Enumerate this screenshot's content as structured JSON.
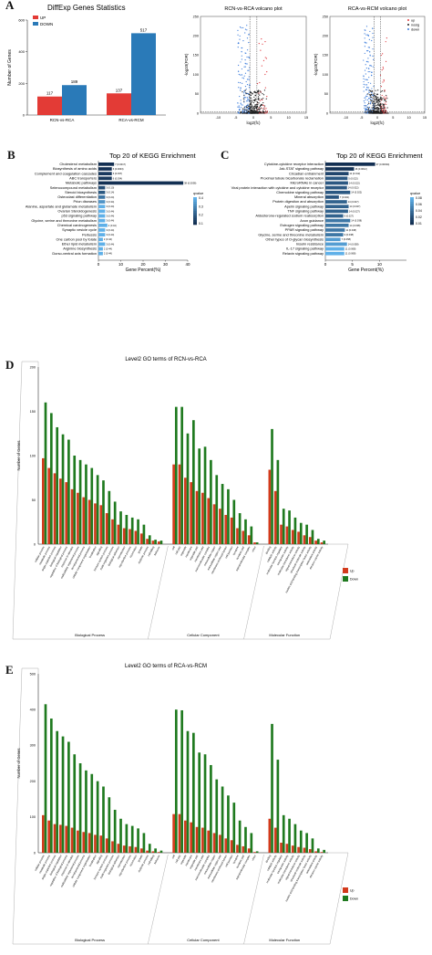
{
  "panel_letters": {
    "a": "A",
    "b": "B",
    "c": "C",
    "d": "D",
    "e": "E"
  },
  "colors": {
    "up": "#e33b36",
    "down": "#2a7ab8",
    "go_up": "#d33a1c",
    "go_down": "#1f7a1f",
    "kegg_dark": "#132f52",
    "kegg_light": "#5fb0e8",
    "volcano_up": "#e0393e",
    "volcano_down": "#3d7ddc",
    "volcano_nosig": "#222222"
  },
  "chart_data": [
    {
      "type": "bar",
      "title": "DiffExp Genes Statistics",
      "ylabel": "Number of Genes",
      "ylim": [
        0,
        600
      ],
      "yticks": [
        0,
        200,
        400,
        600
      ],
      "categories": [
        "RCN-vs-RCA",
        "RCA-vs-RCM"
      ],
      "series": [
        {
          "name": "UP",
          "values": [
            117,
            137
          ]
        },
        {
          "name": "DOWN",
          "values": [
            189,
            517
          ]
        }
      ],
      "legend": "top-left"
    },
    {
      "type": "scatter",
      "title": "RCN-vs-RCA volcano plot",
      "xlabel": "log2(fc)",
      "ylabel": "-log10(FDR)",
      "xlim": [
        -15,
        15
      ],
      "ylim": [
        0,
        250
      ],
      "xticks": [
        -10,
        -5,
        0,
        5,
        10,
        15
      ],
      "yticks": [
        0,
        50,
        100,
        150,
        200,
        250
      ]
    },
    {
      "type": "scatter",
      "title": "RCA-vs-RCM volcano plot",
      "xlabel": "log2(fc)",
      "ylabel": "-log10(FDR)",
      "xlim": [
        -15,
        15
      ],
      "ylim": [
        0,
        250
      ],
      "xticks": [
        -10,
        -5,
        0,
        5,
        10,
        15
      ],
      "yticks": [
        0,
        50,
        100,
        150,
        200,
        250
      ],
      "legend_entries": [
        "up",
        "nosig",
        "down"
      ]
    },
    {
      "type": "bar",
      "orientation": "horizontal",
      "title": "Top 20 of KEGG Enrichment",
      "xlabel": "Gene Percent(%)",
      "xlim": [
        0,
        40
      ],
      "xticks": [
        0,
        10,
        20,
        30,
        40
      ],
      "colorbar": {
        "title": "qvalue",
        "ticks": [
          "0.4",
          "0.3",
          "0.2",
          "0.1"
        ]
      },
      "categories": [
        "Cholesterol metabolism",
        "Biosynthesis of amino acids",
        "Complement and coagulation cascades",
        "ABC transporters",
        "Metabolic pathways",
        "Selenocompound metabolism",
        "Steroid biosynthesis",
        "Osteoclast differentiation",
        "Prion diseases",
        "Alanine, aspartate and glutamate metabolism",
        "Ovarian Steroidogenesis",
        "p53 signaling pathway",
        "Glycine, serine and threonine metabolism",
        "Chemical carcinogenesis",
        "Synaptic vesicle cycle",
        "Pertussis",
        "One carbon pool by folate",
        "Ether lipid metabolism",
        "Arginine biosynthesis",
        "Dorso-ventral axis formation"
      ],
      "values": [
        7,
        6,
        6,
        6,
        38,
        3,
        3,
        3,
        3,
        3,
        3,
        3,
        3,
        4,
        3,
        3,
        2,
        3,
        2,
        2
      ],
      "labels": [
        "7 (0.0017)",
        "6 (0.0033)",
        "6 (0.037)",
        "6 (0.034)",
        "38 (0.0038)",
        "3 (0.10)",
        "3 (0.14)",
        "3 (0.24)",
        "3 (0.34)",
        "3 (0.44)",
        "3 (0.44)",
        "3 (0.44)",
        "3 (0.44)",
        "4 (0.44)",
        "3 (0.44)",
        "3 (0.44)",
        "2 (0.44)",
        "3 (0.44)",
        "2 (0.44)",
        "2 (0.44)"
      ],
      "qvalues": [
        0.0017,
        0.0033,
        0.037,
        0.034,
        0.0038,
        0.1,
        0.14,
        0.24,
        0.34,
        0.44,
        0.44,
        0.44,
        0.44,
        0.44,
        0.44,
        0.44,
        0.44,
        0.44,
        0.44,
        0.44
      ]
    },
    {
      "type": "bar",
      "orientation": "horizontal",
      "title": "Top 20 of KEGG Enrichment",
      "xlabel": "Gene Percent(%)",
      "xlim": [
        0,
        15
      ],
      "xticks": [
        0,
        5,
        10
      ],
      "colorbar": {
        "title": "qvalue",
        "ticks": [
          "0.08",
          "0.06",
          "0.04",
          "0.02",
          "0.01"
        ]
      },
      "categories": [
        "Cytokine-cytokine receptor interaction",
        "Jak-STAT signaling pathway",
        "Circadian entrainment",
        "Proximal tubule bicarbonate reclamation",
        "MicroRNAs in cancer",
        "Viral protein interaction with cytokine and cytokine receptor",
        "Chemokine signaling pathway",
        "Mineral absorption",
        "Protein digestion and absorption",
        "Apelin signaling pathway",
        "TNF signaling pathway",
        "Aldosterone-regulated sodium reabsorption",
        "Axon guidance",
        "Estrogen signaling pathway",
        "PPAR signaling pathway",
        "Glycine, serine and threonine metabolism",
        "Other types of O-glycan biosynthesis",
        "Insulin resistance",
        "IL-17 signaling pathway",
        "Relaxin signaling pathway"
      ],
      "values": [
        9.2,
        5.3,
        4.3,
        4.1,
        4.2,
        4.0,
        4.6,
        2.5,
        4.0,
        4.3,
        4.2,
        3.3,
        4.6,
        4.3,
        3.6,
        3.3,
        2.8,
        4.0,
        3.5,
        3.5
      ],
      "labels": [
        "27 (0.00034)",
        "16 (0.0012)",
        "11 (0.012)",
        "5 (0.022)",
        "14 (0.022)",
        "14 (0.022)",
        "14 (0.022)",
        "7 (0.021)",
        "14 (0.027)",
        "14 (0.027)",
        "14 (0.027)",
        "9 (0.027)",
        "14 (0.038)",
        "14 (0.038)",
        "11 (0.038)",
        "9 (0.038)",
        "7 (0.058)",
        "14 (0.058)",
        "11 (0.068)",
        "11 (0.068)"
      ],
      "qvalues": [
        0.00034,
        0.0012,
        0.012,
        0.022,
        0.022,
        0.022,
        0.022,
        0.021,
        0.027,
        0.027,
        0.027,
        0.027,
        0.038,
        0.038,
        0.038,
        0.038,
        0.058,
        0.058,
        0.068,
        0.068
      ]
    },
    {
      "type": "bar",
      "title": "Level2 GO terms of RCN-vs-RCA",
      "ylabel": "Number of Genes",
      "ylim": [
        0,
        200
      ],
      "yticks": [
        0,
        50,
        100,
        150,
        200
      ],
      "groups": [
        {
          "name": "Biological Process",
          "count": 21
        },
        {
          "name": "Cellular Component",
          "count": 15
        },
        {
          "name": "Molecular Function",
          "count": 10
        }
      ],
      "categories": [
        "cellular process",
        "metabolic process",
        "single-organism process",
        "biological regulation",
        "regulation of biological process",
        "response to stimulus",
        "multicellular organismal process",
        "developmental process",
        "cellular component organization",
        "localization",
        "signaling",
        "immune system process",
        "multi-organism process",
        "biological adhesion",
        "reproduction",
        "reproductive process",
        "locomotion",
        "growth",
        "rhythmic process",
        "cell killing",
        "behavior",
        "cell",
        "cell part",
        "organelle",
        "membrane",
        "organelle part",
        "membrane part",
        "macromolecular complex",
        "extracellular region",
        "extracellular region part",
        "membrane-enclosed lumen",
        "cell junction",
        "synapse",
        "synapse part",
        "supramolecular complex",
        "virion",
        "binding",
        "catalytic activity",
        "molecular function regulator",
        "transporter activity",
        "molecular transducer activity",
        "signal transducer activity",
        "structural molecule activity",
        "nucleic acid binding transcription factor activity",
        "antioxidant activity",
        "electron carrier activity"
      ],
      "series": [
        {
          "name": "Up",
          "values": [
            97,
            86,
            80,
            74,
            70,
            62,
            58,
            53,
            50,
            46,
            44,
            35,
            28,
            22,
            18,
            17,
            15,
            12,
            6,
            4,
            3,
            90,
            90,
            75,
            70,
            60,
            58,
            52,
            45,
            40,
            33,
            30,
            18,
            15,
            10,
            2,
            84,
            60,
            22,
            20,
            16,
            14,
            10,
            8,
            4,
            2
          ]
        },
        {
          "name": "Down",
          "values": [
            160,
            148,
            132,
            124,
            118,
            100,
            95,
            90,
            86,
            78,
            72,
            60,
            48,
            37,
            33,
            30,
            28,
            22,
            10,
            5,
            4,
            155,
            155,
            125,
            140,
            108,
            110,
            95,
            78,
            68,
            62,
            50,
            35,
            28,
            20,
            2,
            130,
            95,
            40,
            38,
            30,
            24,
            22,
            16,
            6,
            4
          ]
        }
      ],
      "legend_entries": [
        "Up",
        "Down"
      ]
    },
    {
      "type": "bar",
      "title": "Level2 GO terms of RCA-vs-RCM",
      "ylabel": "Number of Genes",
      "ylim": [
        0,
        500
      ],
      "yticks": [
        0,
        100,
        200,
        300,
        400,
        500
      ],
      "groups": [
        {
          "name": "Biological Process",
          "count": 21
        },
        {
          "name": "Cellular Component",
          "count": 15
        },
        {
          "name": "Molecular Function",
          "count": 10
        }
      ],
      "categories": [
        "cellular process",
        "metabolic process",
        "single-organism process",
        "biological regulation",
        "regulation of biological process",
        "response to stimulus",
        "multicellular organismal process",
        "developmental process",
        "cellular component organization",
        "localization",
        "signaling",
        "immune system process",
        "multi-organism process",
        "biological adhesion",
        "reproduction",
        "reproductive process",
        "locomotion",
        "growth",
        "rhythmic process",
        "cell killing",
        "behavior",
        "cell",
        "cell part",
        "organelle",
        "membrane",
        "organelle part",
        "membrane part",
        "macromolecular complex",
        "extracellular region",
        "extracellular region part",
        "membrane-enclosed lumen",
        "cell junction",
        "synapse",
        "synapse part",
        "supramolecular complex",
        "virion",
        "binding",
        "catalytic activity",
        "molecular function regulator",
        "transporter activity",
        "molecular transducer activity",
        "signal transducer activity",
        "structural molecule activity",
        "nucleic acid binding transcription factor activity",
        "antioxidant activity",
        "electron carrier activity"
      ],
      "series": [
        {
          "name": "Up",
          "values": [
            105,
            90,
            80,
            78,
            75,
            70,
            62,
            58,
            55,
            50,
            48,
            40,
            32,
            25,
            20,
            18,
            16,
            12,
            6,
            4,
            2,
            108,
            108,
            90,
            85,
            72,
            70,
            62,
            55,
            50,
            40,
            35,
            22,
            18,
            12,
            2,
            95,
            70,
            28,
            25,
            20,
            16,
            14,
            10,
            4,
            2
          ]
        },
        {
          "name": "Down",
          "values": [
            415,
            375,
            340,
            325,
            310,
            275,
            250,
            230,
            220,
            200,
            185,
            155,
            120,
            95,
            80,
            75,
            68,
            55,
            25,
            12,
            6,
            400,
            398,
            340,
            335,
            280,
            275,
            245,
            205,
            185,
            160,
            140,
            90,
            72,
            55,
            4,
            360,
            260,
            105,
            95,
            80,
            62,
            55,
            40,
            12,
            8
          ]
        }
      ],
      "legend_entries": [
        "Up",
        "Down"
      ]
    }
  ]
}
